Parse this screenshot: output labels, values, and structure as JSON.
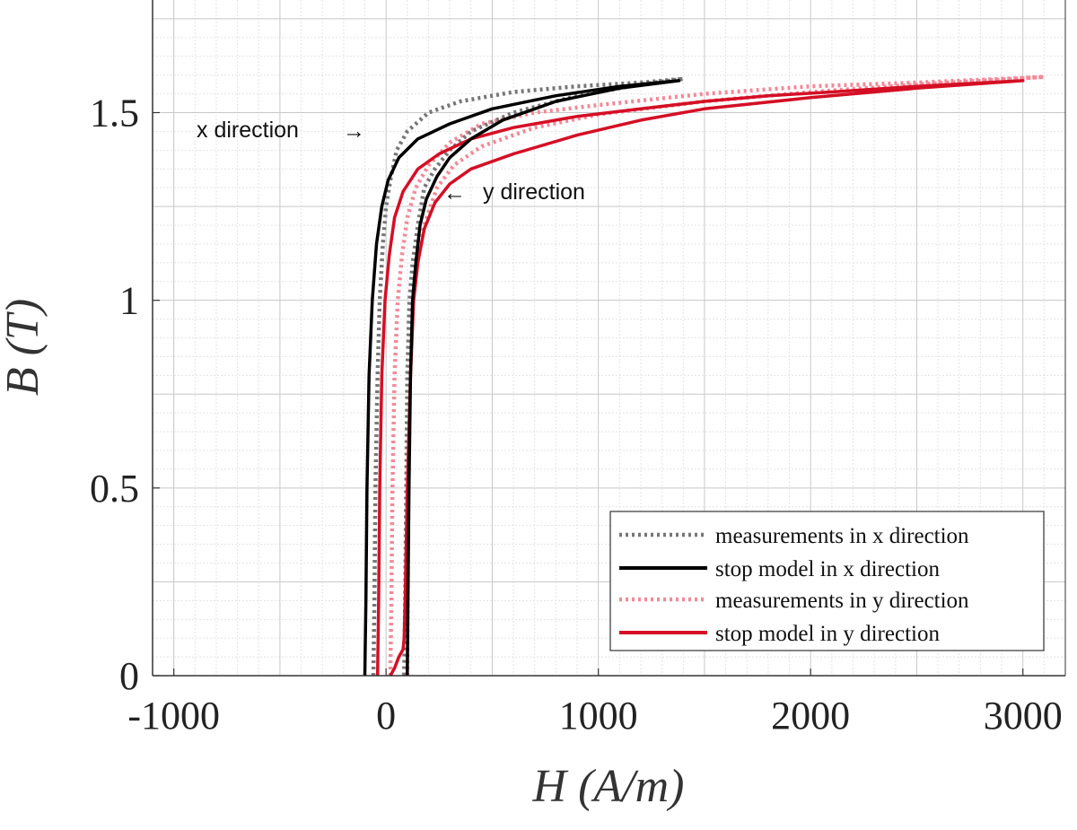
{
  "chart_data": {
    "type": "line",
    "xlabel": "H (A/m)",
    "ylabel": "B (T)",
    "xlim": [
      -1100,
      3200
    ],
    "ylim": [
      0,
      1.8
    ],
    "xticks": [
      -1000,
      0,
      1000,
      2000,
      3000
    ],
    "xtick_labels": [
      "-1000",
      "0",
      "1000",
      "2000",
      "3000"
    ],
    "yticks": [
      0,
      0.5,
      1,
      1.5
    ],
    "ytick_labels": [
      "0",
      "0.5",
      "1",
      "1.5"
    ],
    "grid": "on (major and minor)",
    "legend_position": "bottom-right",
    "colors": {
      "meas_x": "#777777",
      "model_x": "#000000",
      "meas_y": "#f28a99",
      "model_y": "#d40f25"
    },
    "annotations": [
      {
        "text": "x direction",
        "arrow": "→",
        "points_to": [
          0,
          1.5
        ]
      },
      {
        "text": "y direction",
        "arrow": "←",
        "points_to": [
          250,
          1.3
        ]
      }
    ],
    "series": [
      {
        "name": "measurements in x direction",
        "style": "dotted",
        "color": "#777777",
        "x": [
          -60,
          -55,
          -50,
          -40,
          -30,
          -15,
          0,
          20,
          50,
          100,
          200,
          350,
          600,
          900,
          1200,
          1400,
          1400,
          1200,
          900,
          600,
          400,
          300,
          230,
          180,
          150,
          125,
          110,
          100,
          95,
          90,
          85
        ],
        "y": [
          0.0,
          0.2,
          0.5,
          0.8,
          1.0,
          1.15,
          1.25,
          1.32,
          1.4,
          1.45,
          1.5,
          1.53,
          1.555,
          1.57,
          1.58,
          1.59,
          1.59,
          1.575,
          1.545,
          1.5,
          1.45,
          1.4,
          1.35,
          1.3,
          1.2,
          1.1,
          1.0,
          0.8,
          0.5,
          0.2,
          0.0
        ]
      },
      {
        "name": "stop model in x direction",
        "style": "solid",
        "color": "#000000",
        "x": [
          -100,
          -95,
          -90,
          -80,
          -65,
          -45,
          -20,
          10,
          60,
          150,
          300,
          500,
          800,
          1100,
          1380,
          1380,
          1100,
          800,
          550,
          400,
          300,
          240,
          190,
          160,
          140,
          125,
          115,
          108,
          100
        ],
        "y": [
          0.0,
          0.2,
          0.5,
          0.8,
          1.0,
          1.15,
          1.25,
          1.32,
          1.38,
          1.43,
          1.47,
          1.51,
          1.545,
          1.57,
          1.585,
          1.585,
          1.565,
          1.53,
          1.48,
          1.43,
          1.38,
          1.33,
          1.27,
          1.2,
          1.1,
          1.0,
          0.8,
          0.5,
          0.0
        ]
      },
      {
        "name": "measurements in y direction",
        "style": "dotted",
        "color": "#f28a99",
        "x": [
          20,
          25,
          30,
          40,
          55,
          75,
          100,
          140,
          200,
          300,
          450,
          700,
          1000,
          1500,
          2000,
          2500,
          3100,
          3100,
          2500,
          2000,
          1500,
          1000,
          700,
          450,
          320,
          240,
          180,
          140,
          120,
          110,
          105,
          100
        ],
        "y": [
          0.0,
          0.2,
          0.5,
          0.8,
          1.0,
          1.12,
          1.22,
          1.3,
          1.36,
          1.42,
          1.47,
          1.5,
          1.52,
          1.55,
          1.57,
          1.58,
          1.595,
          1.595,
          1.575,
          1.555,
          1.53,
          1.495,
          1.46,
          1.41,
          1.36,
          1.3,
          1.2,
          1.1,
          1.0,
          0.8,
          0.5,
          0.0
        ]
      },
      {
        "name": "stop model in y direction",
        "style": "solid",
        "color": "#d40f25",
        "x": [
          -40,
          -35,
          -30,
          -20,
          -5,
          15,
          40,
          80,
          150,
          250,
          400,
          600,
          900,
          1200,
          1500,
          1800,
          2100,
          2500,
          3000,
          3000,
          2500,
          2000,
          1500,
          1200,
          900,
          600,
          400,
          300,
          230,
          180,
          150,
          130,
          115,
          100,
          90,
          85,
          80,
          60,
          40,
          20
        ],
        "y": [
          0.0,
          0.2,
          0.5,
          0.8,
          1.0,
          1.12,
          1.22,
          1.29,
          1.35,
          1.39,
          1.43,
          1.46,
          1.49,
          1.51,
          1.53,
          1.545,
          1.555,
          1.57,
          1.585,
          1.585,
          1.565,
          1.54,
          1.51,
          1.48,
          1.44,
          1.39,
          1.35,
          1.31,
          1.26,
          1.19,
          1.1,
          1.0,
          0.8,
          0.5,
          0.2,
          0.1,
          0.07,
          0.05,
          0.02,
          0.0
        ]
      }
    ]
  }
}
